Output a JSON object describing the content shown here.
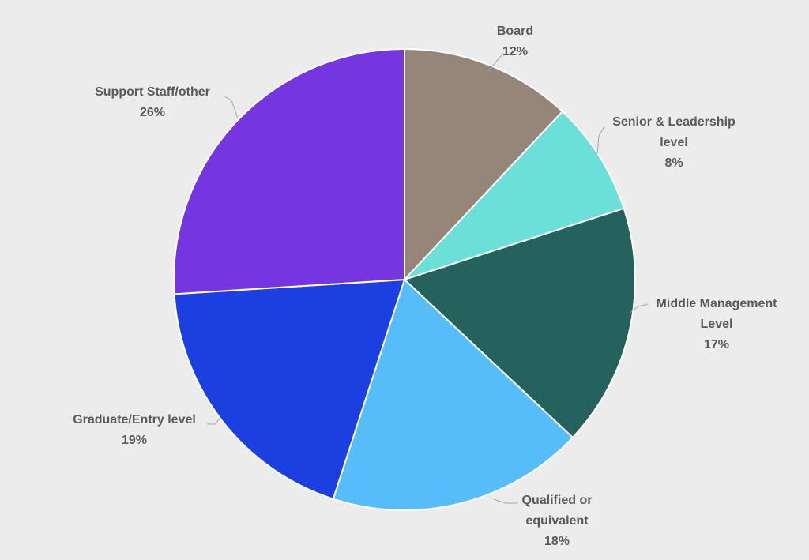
{
  "chart_data": {
    "type": "pie",
    "title": "",
    "start_angle_deg": 0,
    "direction": "clockwise",
    "slices": [
      {
        "label_lines": [
          "Board"
        ],
        "pct_label": "12%",
        "value": 12,
        "color": "#968579"
      },
      {
        "label_lines": [
          "Senior & Leadership",
          "level"
        ],
        "pct_label": "8%",
        "value": 8,
        "color": "#6ae0d8"
      },
      {
        "label_lines": [
          "Middle Management",
          "Level"
        ],
        "pct_label": "17%",
        "value": 17,
        "color": "#26625d"
      },
      {
        "label_lines": [
          "Qualified or",
          "equivalent"
        ],
        "pct_label": "18%",
        "value": 18,
        "color": "#56bdf9"
      },
      {
        "label_lines": [
          "Graduate/Entry level"
        ],
        "pct_label": "19%",
        "value": 19,
        "color": "#1c3fe0"
      },
      {
        "label_lines": [
          "Support Staff/other"
        ],
        "pct_label": "26%",
        "value": 26,
        "color": "#7536e2"
      }
    ]
  }
}
